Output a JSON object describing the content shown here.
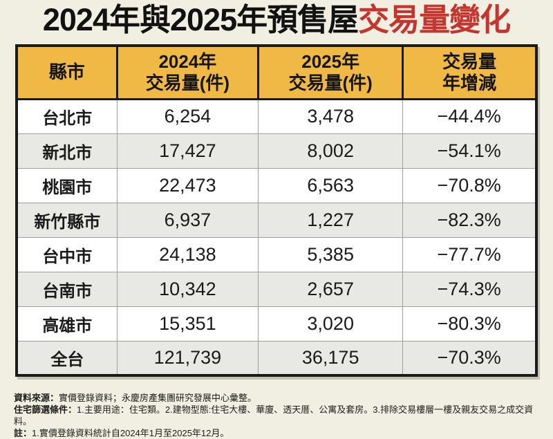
{
  "title": {
    "black_part": "2024年與2025年預售屋",
    "red_part": "交易量變化"
  },
  "table": {
    "headers": [
      {
        "top": "縣市",
        "bottom": ""
      },
      {
        "top": "2024年",
        "bottom": "交易量(件)"
      },
      {
        "top": "2025年",
        "bottom": "交易量(件)"
      },
      {
        "top": "交易量",
        "bottom": "年增減"
      }
    ],
    "rows": [
      {
        "city": "台北市",
        "y2024": "6,254",
        "y2025": "3,478",
        "change": "−44.4%"
      },
      {
        "city": "新北市",
        "y2024": "17,427",
        "y2025": "8,002",
        "change": "−54.1%"
      },
      {
        "city": "桃園市",
        "y2024": "22,473",
        "y2025": "6,563",
        "change": "−70.8%"
      },
      {
        "city": "新竹縣市",
        "y2024": "6,937",
        "y2025": "1,227",
        "change": "−82.3%"
      },
      {
        "city": "台中市",
        "y2024": "24,138",
        "y2025": "5,385",
        "change": "−77.7%"
      },
      {
        "city": "台南市",
        "y2024": "10,342",
        "y2025": "2,657",
        "change": "−74.3%"
      },
      {
        "city": "高雄市",
        "y2024": "15,351",
        "y2025": "3,020",
        "change": "−80.3%"
      },
      {
        "city": "全台",
        "y2024": "121,739",
        "y2025": "36,175",
        "change": "−70.3%"
      }
    ]
  },
  "notes": [
    {
      "label": "資料來源：",
      "text": "實價登錄資料；永慶房產集團研究發展中心彙整。"
    },
    {
      "label": "住宅篩選條件：",
      "text": "1.主要用途：住宅類。2.建物型態:住宅大樓、華廈、透天厝、公寓及套房。3.排除交易樓層一樓及親友交易之成交資料。"
    },
    {
      "label": "註：",
      "text": "1.實價登錄資料統計自2024年1月至2025年12月。"
    }
  ],
  "colors": {
    "page_background": "#F0EFE1",
    "header_background": "#F0B946",
    "title_red": "#C5342E",
    "row_alternate": "#E8E8E4",
    "table_border": "#1a1a1a"
  },
  "chart_data": {
    "type": "table",
    "title": "2024年與2025年預售屋交易量變化",
    "columns": [
      "縣市",
      "2024年交易量(件)",
      "2025年交易量(件)",
      "交易量年增減"
    ],
    "rows": [
      [
        "台北市",
        6254,
        3478,
        "-44.4%"
      ],
      [
        "新北市",
        17427,
        8002,
        "-54.1%"
      ],
      [
        "桃園市",
        22473,
        6563,
        "-70.8%"
      ],
      [
        "新竹縣市",
        6937,
        1227,
        "-82.3%"
      ],
      [
        "台中市",
        24138,
        5385,
        "-77.7%"
      ],
      [
        "台南市",
        10342,
        2657,
        "-74.3%"
      ],
      [
        "高雄市",
        15351,
        3020,
        "-80.3%"
      ],
      [
        "全台",
        121739,
        36175,
        "-70.3%"
      ]
    ]
  }
}
